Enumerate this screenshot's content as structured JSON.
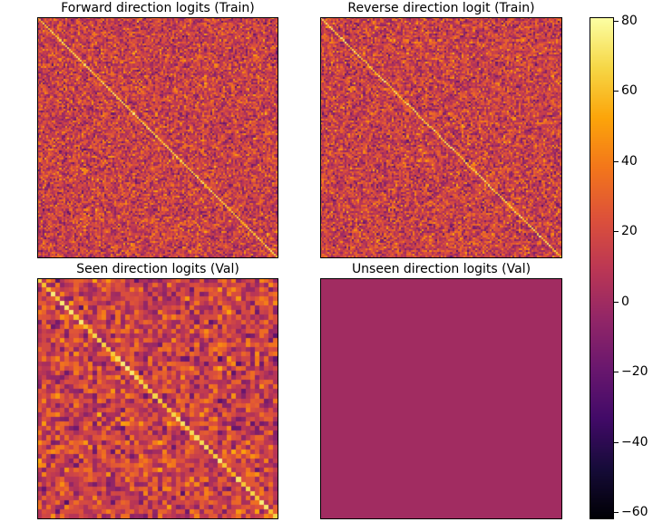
{
  "chart_data": [
    {
      "type": "heatmap",
      "title": "Forward direction logits (Train)",
      "grid_size": 128,
      "pattern": "random",
      "xlabel": "",
      "ylabel": ""
    },
    {
      "type": "heatmap",
      "title": "Reverse direction logit (Train)",
      "grid_size": 128,
      "pattern": "random",
      "xlabel": "",
      "ylabel": ""
    },
    {
      "type": "heatmap",
      "title": "Seen direction logits (Val)",
      "grid_size": 52,
      "pattern": "random",
      "xlabel": "",
      "ylabel": ""
    },
    {
      "type": "heatmap",
      "title": "Unseen direction logits (Val)",
      "grid_size": 1,
      "pattern": "uniform",
      "uniform_value": 0,
      "xlabel": "",
      "ylabel": ""
    }
  ],
  "colorbar": {
    "colormap": "inferno",
    "range": [
      -62,
      81
    ],
    "ticks": [
      -60,
      -40,
      -20,
      0,
      20,
      40,
      60,
      80
    ],
    "tick_labels": [
      "−60",
      "−40",
      "−20",
      "0",
      "20",
      "40",
      "60",
      "80"
    ]
  }
}
